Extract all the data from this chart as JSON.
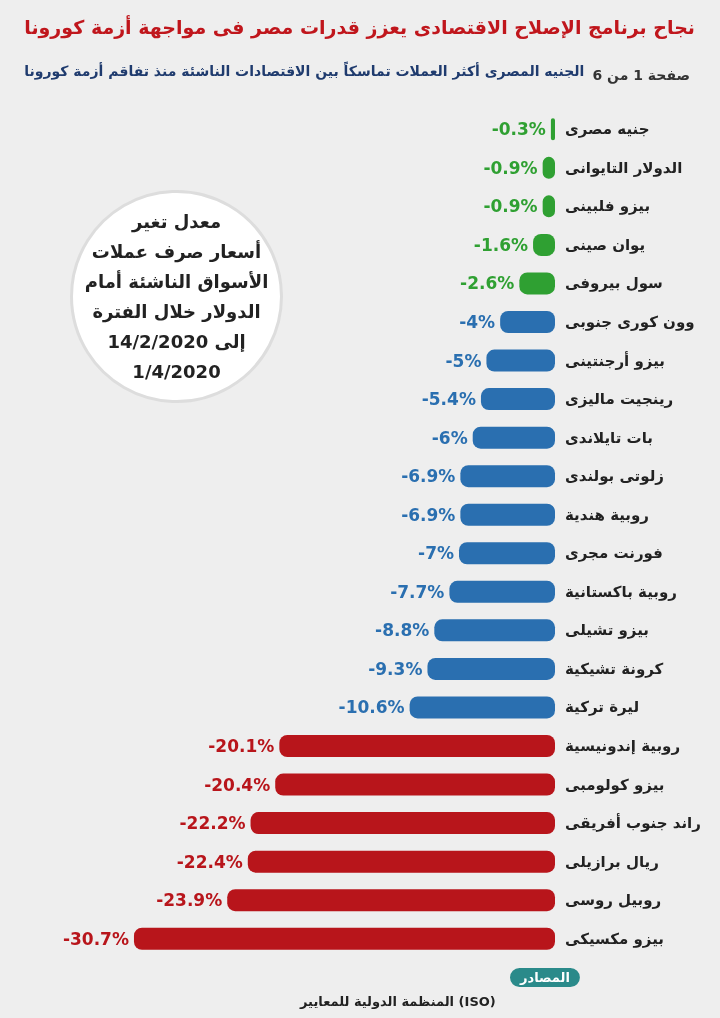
{
  "chart_data": {
    "type": "bar",
    "orientation": "horizontal",
    "title": "نجاح برنامج الإصلاح الاقتصادى يعزز قدرات مصر فى مواجهة أزمة كورونا",
    "subtitle": "الجنيه المصرى أكثر العملات تماسكاً بين الاقتصادات الناشئة منذ تفاقم أزمة كورونا",
    "annotations": [
      "صفحة 1 من 6",
      "معدل تغير\nأسعار صرف عملات\nالأسواق الناشئة أمام\nالدولار خلال الفترة\n14/2/2020 إلى\n1/4/2020",
      "المصادر",
      "المنظمة الدولية للمعايير (ISO)"
    ],
    "categories": [
      "جنيه مصرى",
      "الدولار التايوانى",
      "بيزو فلبينى",
      "يوان صينى",
      "سول بيروفى",
      "وون كورى جنوبى",
      "بيزو أرجنتينى",
      "رينجيت ماليزى",
      "بات تايلاندى",
      "زلوتى بولندى",
      "روبية هندية",
      "فورنت مجرى",
      "روبية باكستانية",
      "بيزو تشيلى",
      "كرونة تشيكية",
      "ليرة تركية",
      "روبية إندونيسية",
      "بيزو كولومبى",
      "راند جنوب أفريقى",
      "ريال برازيلى",
      "روبيل روسى",
      "بيزو مكسيكى"
    ],
    "values": [
      -0.3,
      -0.9,
      -0.9,
      -1.6,
      -2.6,
      -4,
      -5,
      -5.4,
      -6,
      -6.9,
      -6.9,
      -7,
      -7.7,
      -8.8,
      -9.3,
      -10.6,
      -20.1,
      -20.4,
      -22.2,
      -22.4,
      -23.9,
      -30.7
    ],
    "value_labels": [
      "-0.3%",
      "-0.9%",
      "-0.9%",
      "-1.6%",
      "-2.6%",
      "-4%",
      "-5%",
      "-5.4%",
      "-6%",
      "-6.9%",
      "-6.9%",
      "-7%",
      "-7.7%",
      "-8.8%",
      "-9.3%",
      "-10.6%",
      "-20.1%",
      "-20.4%",
      "-22.2%",
      "-22.4%",
      "-23.9%",
      "-30.7%"
    ],
    "colors": [
      "#2fa032",
      "#2fa032",
      "#2fa032",
      "#2fa032",
      "#2fa032",
      "#2a6fb0",
      "#2a6fb0",
      "#2a6fb0",
      "#2a6fb0",
      "#2a6fb0",
      "#2a6fb0",
      "#2a6fb0",
      "#2a6fb0",
      "#2a6fb0",
      "#2a6fb0",
      "#2a6fb0",
      "#b8151b",
      "#b8151b",
      "#b8151b",
      "#b8151b",
      "#b8151b",
      "#b8151b"
    ]
  }
}
